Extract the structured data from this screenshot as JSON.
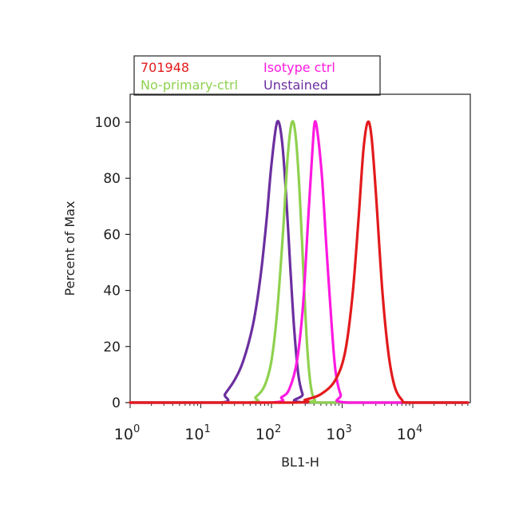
{
  "chart_data": {
    "type": "line",
    "title": "",
    "xlabel": "BL1-H",
    "ylabel": "Percent of Max",
    "x_scale": "log",
    "xlim": [
      1,
      60000
    ],
    "ylim": [
      0,
      110
    ],
    "x_ticks": [
      {
        "value": 1,
        "base": "10",
        "exp": "0"
      },
      {
        "value": 10,
        "base": "10",
        "exp": "1"
      },
      {
        "value": 100,
        "base": "10",
        "exp": "2"
      },
      {
        "value": 1000,
        "base": "10",
        "exp": "3"
      },
      {
        "value": 10000,
        "base": "10",
        "exp": "4"
      }
    ],
    "y_ticks": [
      0,
      20,
      40,
      60,
      80,
      100
    ],
    "grid": false,
    "legend_position": "top",
    "series": [
      {
        "name": "701948",
        "color": "#e31a1c",
        "points": [
          [
            1,
            0
          ],
          [
            200,
            0
          ],
          [
            300,
            1
          ],
          [
            500,
            3
          ],
          [
            800,
            8
          ],
          [
            1100,
            18
          ],
          [
            1400,
            38
          ],
          [
            1700,
            65
          ],
          [
            2000,
            90
          ],
          [
            2300,
            100
          ],
          [
            2600,
            95
          ],
          [
            3000,
            75
          ],
          [
            3700,
            40
          ],
          [
            4500,
            18
          ],
          [
            5500,
            6
          ],
          [
            7000,
            1
          ],
          [
            9000,
            0
          ],
          [
            60000,
            0
          ]
        ]
      },
      {
        "name": "Isotype ctrl",
        "color": "#ff19e0",
        "points": [
          [
            1,
            0
          ],
          [
            90,
            0
          ],
          [
            140,
            2
          ],
          [
            180,
            5
          ],
          [
            230,
            15
          ],
          [
            280,
            35
          ],
          [
            330,
            65
          ],
          [
            380,
            90
          ],
          [
            410,
            100
          ],
          [
            450,
            96
          ],
          [
            520,
            80
          ],
          [
            600,
            55
          ],
          [
            700,
            30
          ],
          [
            800,
            12
          ],
          [
            950,
            3
          ],
          [
            1200,
            0
          ],
          [
            60000,
            0
          ]
        ]
      },
      {
        "name": "No-primary-ctrl",
        "color": "#8fd14f",
        "points": [
          [
            1,
            0
          ],
          [
            45,
            0
          ],
          [
            60,
            2
          ],
          [
            80,
            6
          ],
          [
            100,
            15
          ],
          [
            120,
            32
          ],
          [
            145,
            60
          ],
          [
            170,
            88
          ],
          [
            195,
            100
          ],
          [
            220,
            95
          ],
          [
            250,
            75
          ],
          [
            285,
            45
          ],
          [
            320,
            20
          ],
          [
            360,
            6
          ],
          [
            410,
            1
          ],
          [
            500,
            0
          ],
          [
            60000,
            0
          ]
        ]
      },
      {
        "name": "Unstained",
        "color": "#6b2fa0",
        "points": [
          [
            1,
            0
          ],
          [
            19,
            0
          ],
          [
            22,
            3
          ],
          [
            30,
            8
          ],
          [
            40,
            15
          ],
          [
            55,
            28
          ],
          [
            70,
            45
          ],
          [
            85,
            65
          ],
          [
            100,
            85
          ],
          [
            120,
            100
          ],
          [
            140,
            94
          ],
          [
            160,
            75
          ],
          [
            185,
            48
          ],
          [
            210,
            26
          ],
          [
            240,
            10
          ],
          [
            275,
            3
          ],
          [
            320,
            0
          ],
          [
            60000,
            0
          ]
        ]
      }
    ]
  }
}
